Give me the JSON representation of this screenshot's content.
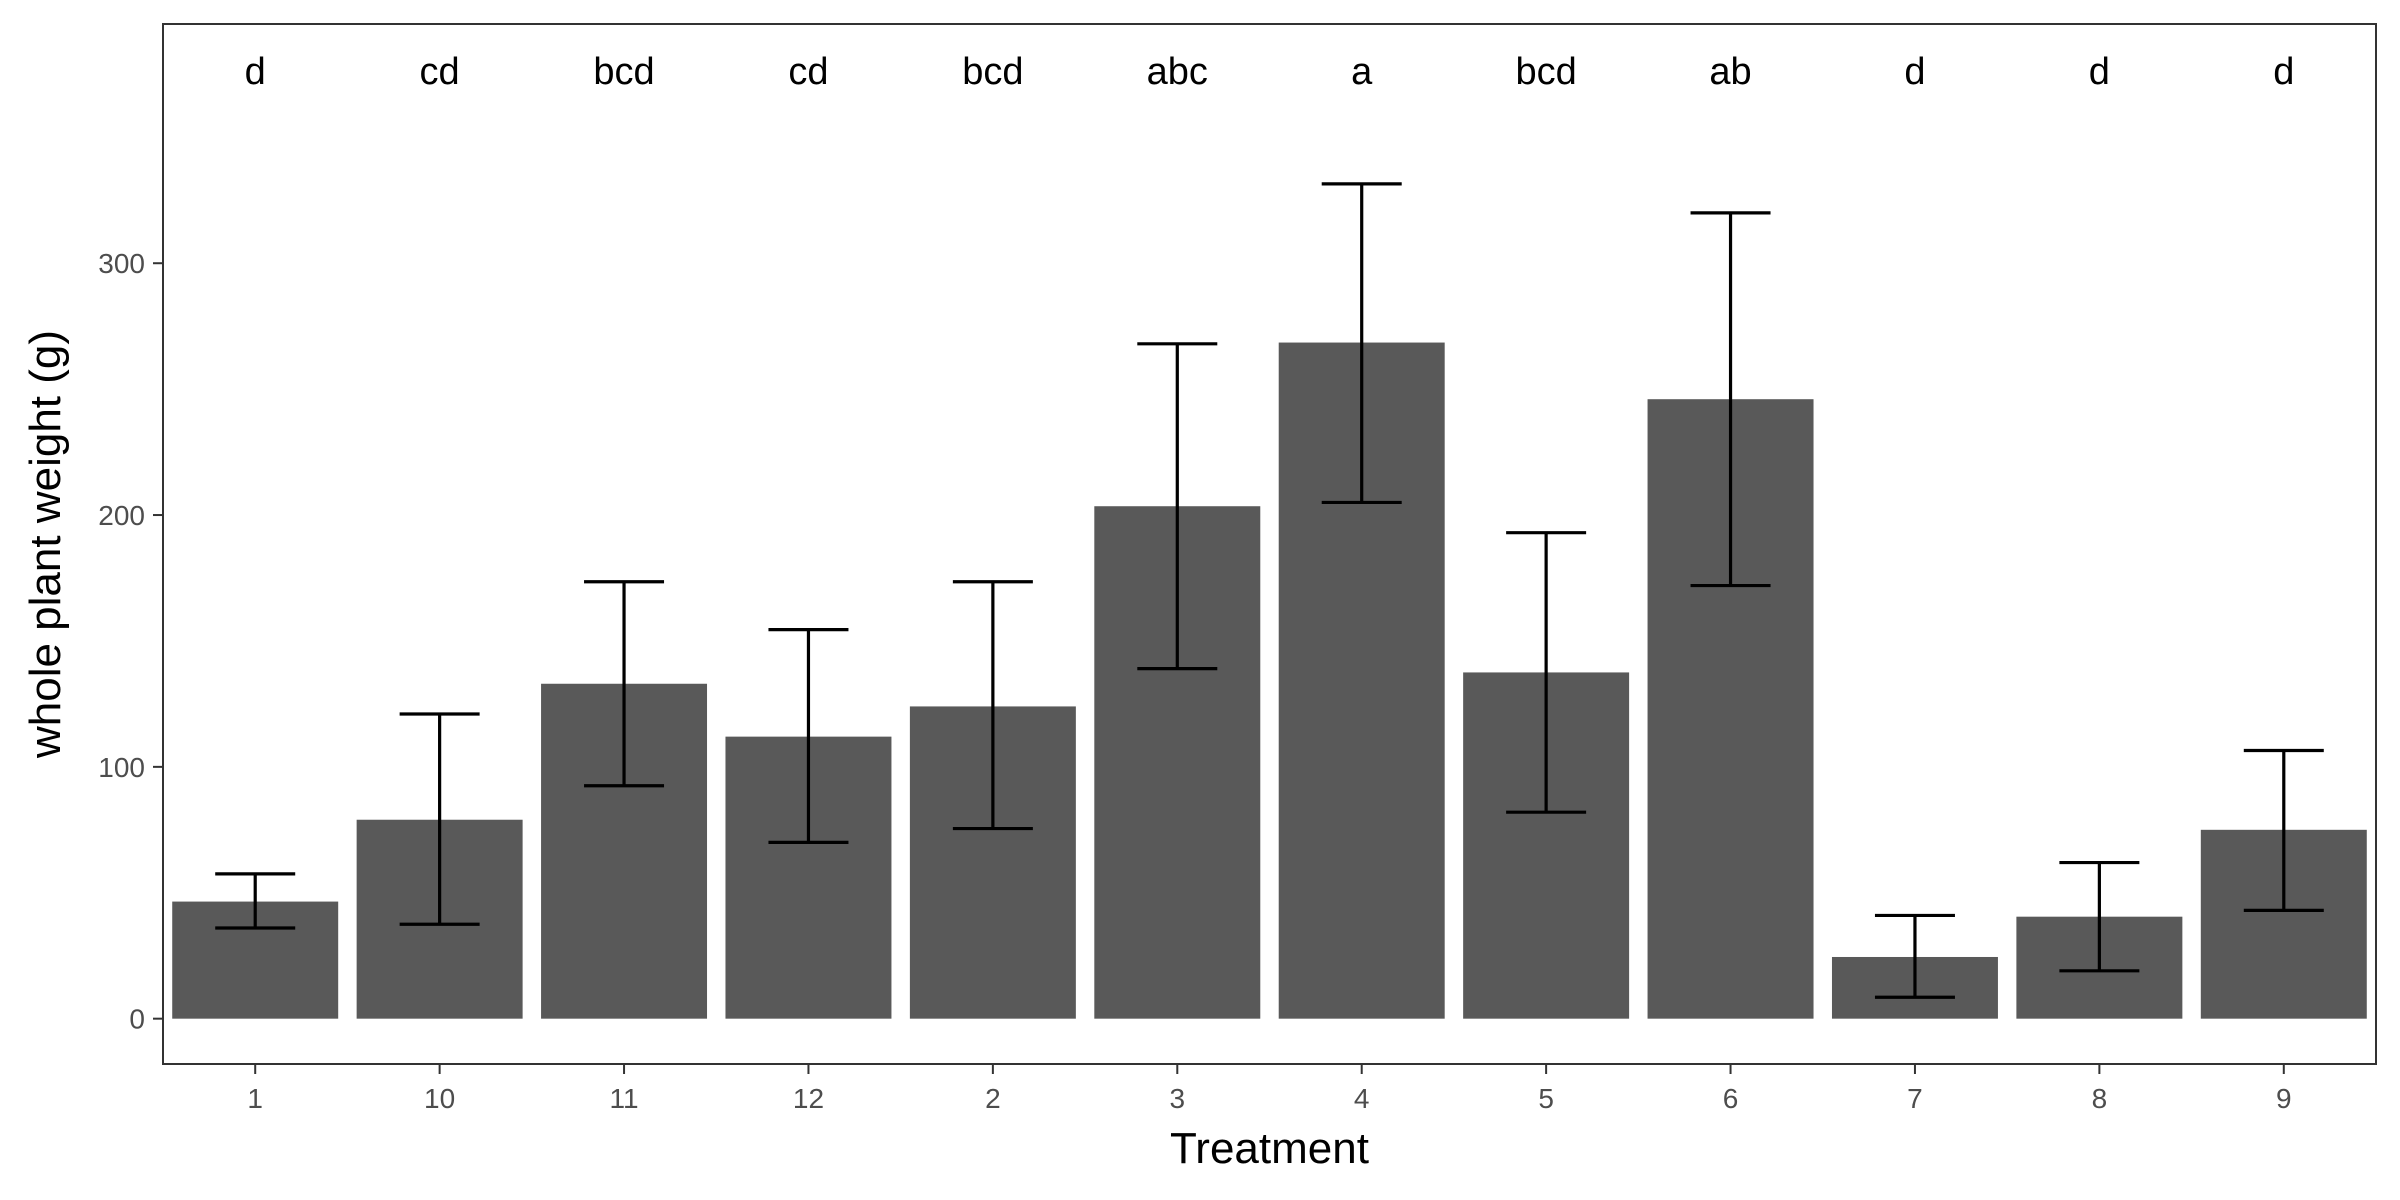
{
  "chart_data": {
    "type": "bar",
    "title": "",
    "xlabel": "Treatment",
    "ylabel": "whole plant weight (g)",
    "ylim": [
      -18,
      395
    ],
    "yticks": [
      0,
      100,
      200,
      300
    ],
    "grid": false,
    "categories": [
      "1",
      "10",
      "11",
      "12",
      "2",
      "3",
      "4",
      "5",
      "6",
      "7",
      "8",
      "9"
    ],
    "series": [
      {
        "values": [
          46.5,
          79,
          133,
          112,
          124,
          203.5,
          268.5,
          137.5,
          246,
          24.5,
          40.5,
          75
        ],
        "error_low": [
          36,
          37.5,
          92.5,
          70,
          75.5,
          139,
          205,
          82,
          172,
          8.5,
          19,
          43
        ],
        "error_high": [
          57.5,
          121,
          173.5,
          154.5,
          173.5,
          268,
          331.5,
          193,
          320,
          41,
          62,
          106.5
        ]
      }
    ],
    "significance_letters": [
      "d",
      "cd",
      "bcd",
      "cd",
      "bcd",
      "abc",
      "a",
      "bcd",
      "ab",
      "d",
      "d",
      "d"
    ],
    "colors": {
      "bar": "#595959",
      "error_bar": "#000000",
      "panel_border": "#333333",
      "tick_text": "#4d4d4d"
    }
  }
}
